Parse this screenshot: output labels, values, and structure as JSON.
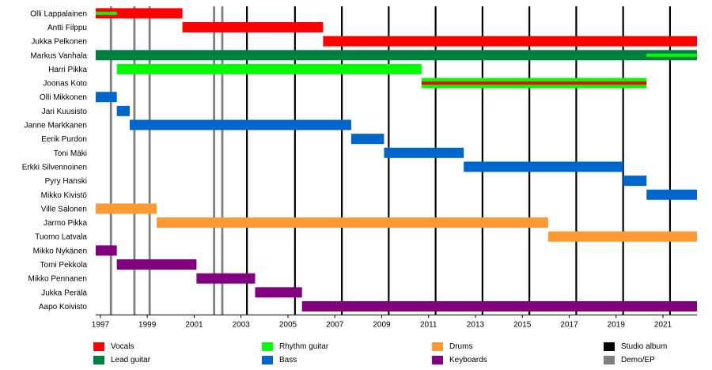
{
  "chart_data": {
    "type": "timeline",
    "title": "",
    "xlabel": "",
    "ylabel": "",
    "xlim": [
      1996.8,
      2022.45
    ],
    "x_ticks": [
      "1997",
      "1999",
      "2001",
      "2003",
      "2005",
      "2007",
      "2009",
      "2011",
      "2013",
      "2015",
      "2017",
      "2019",
      "2021"
    ],
    "x_tick_values": [
      1997,
      1999,
      2001,
      2003,
      2005,
      2007,
      2009,
      2011,
      2013,
      2015,
      2017,
      2019,
      2021
    ],
    "grid": false,
    "legend_position": "bottom",
    "roles": [
      {
        "key": "vocals",
        "label": "Vocals",
        "color": "#ff0000"
      },
      {
        "key": "lead",
        "label": "Lead guitar",
        "color": "#008040"
      },
      {
        "key": "rhythm",
        "label": "Rhythm guitar",
        "color": "#00ff00"
      },
      {
        "key": "bass",
        "label": "Bass",
        "color": "#0066cc"
      },
      {
        "key": "drums",
        "label": "Drums",
        "color": "#ff9933"
      },
      {
        "key": "keys",
        "label": "Keyboards",
        "color": "#800080"
      }
    ],
    "event_types": [
      {
        "key": "studio",
        "label": "Studio album",
        "color": "#000000"
      },
      {
        "key": "demo",
        "label": "Demo/EP",
        "color": "#808080"
      }
    ],
    "members": [
      {
        "name": "Olli Lappalainen",
        "periods": [
          {
            "role": "vocals",
            "start": 1996.8,
            "end": 2000.5
          },
          {
            "role": "rhythm",
            "start": 1996.8,
            "end": 1997.7,
            "thin": true
          }
        ]
      },
      {
        "name": "Antti Filppu",
        "periods": [
          {
            "role": "vocals",
            "start": 2000.5,
            "end": 2006.5
          }
        ]
      },
      {
        "name": "Jukka Pelkonen",
        "periods": [
          {
            "role": "vocals",
            "start": 2006.5,
            "end": 2022.45
          }
        ]
      },
      {
        "name": "Markus Vanhala",
        "periods": [
          {
            "role": "lead",
            "start": 1996.8,
            "end": 2022.45
          },
          {
            "role": "rhythm",
            "start": 2020.3,
            "end": 2022.45,
            "thin": true
          }
        ]
      },
      {
        "name": "Harri Pikka",
        "periods": [
          {
            "role": "rhythm",
            "start": 1997.7,
            "end": 2010.7
          }
        ]
      },
      {
        "name": "Joonas Koto",
        "periods": [
          {
            "role": "rhythm",
            "start": 2010.7,
            "end": 2020.3
          },
          {
            "role": "vocals",
            "start": 2010.7,
            "end": 2020.3,
            "thin": true
          }
        ]
      },
      {
        "name": "Olli Mikkonen",
        "periods": [
          {
            "role": "bass",
            "start": 1996.8,
            "end": 1997.7
          }
        ]
      },
      {
        "name": "Jari Kuusisto",
        "periods": [
          {
            "role": "bass",
            "start": 1997.7,
            "end": 1998.25
          }
        ]
      },
      {
        "name": "Janne Markkanen",
        "periods": [
          {
            "role": "bass",
            "start": 1998.25,
            "end": 2007.7
          }
        ]
      },
      {
        "name": "Eerik Purdon",
        "periods": [
          {
            "role": "bass",
            "start": 2007.7,
            "end": 2009.1
          }
        ]
      },
      {
        "name": "Toni Mäki",
        "periods": [
          {
            "role": "bass",
            "start": 2009.1,
            "end": 2012.5
          }
        ]
      },
      {
        "name": "Erkki Silvennoinen",
        "periods": [
          {
            "role": "bass",
            "start": 2012.5,
            "end": 2019.3
          }
        ]
      },
      {
        "name": "Pyry Hanski",
        "periods": [
          {
            "role": "bass",
            "start": 2019.3,
            "end": 2020.3
          }
        ]
      },
      {
        "name": "Mikko Kivistö",
        "periods": [
          {
            "role": "bass",
            "start": 2020.3,
            "end": 2022.45
          }
        ]
      },
      {
        "name": "Ville Salonen",
        "periods": [
          {
            "role": "drums",
            "start": 1996.8,
            "end": 1999.4
          }
        ]
      },
      {
        "name": "Jarmo Pikka",
        "periods": [
          {
            "role": "drums",
            "start": 1999.4,
            "end": 2016.1
          }
        ]
      },
      {
        "name": "Tuomo Latvala",
        "periods": [
          {
            "role": "drums",
            "start": 2016.1,
            "end": 2022.45
          }
        ]
      },
      {
        "name": "Mikko Nykänen",
        "periods": [
          {
            "role": "keys",
            "start": 1996.8,
            "end": 1997.7
          }
        ]
      },
      {
        "name": "Tomi Pekkola",
        "periods": [
          {
            "role": "keys",
            "start": 1997.7,
            "end": 2001.1
          }
        ]
      },
      {
        "name": "Mikko Pennanen",
        "periods": [
          {
            "role": "keys",
            "start": 2001.1,
            "end": 2003.6
          }
        ]
      },
      {
        "name": "Jukka Perälä",
        "periods": [
          {
            "role": "keys",
            "start": 2003.6,
            "end": 2005.6
          }
        ]
      },
      {
        "name": "Aapo Koivisto",
        "periods": [
          {
            "role": "keys",
            "start": 2005.6,
            "end": 2022.45
          }
        ]
      }
    ],
    "events": [
      {
        "type": "demo",
        "x": 1997.45
      },
      {
        "type": "demo",
        "x": 1998.45
      },
      {
        "type": "demo",
        "x": 1999.1
      },
      {
        "type": "demo",
        "x": 2001.85
      },
      {
        "type": "demo",
        "x": 2002.2
      },
      {
        "type": "studio",
        "x": 2003.25
      },
      {
        "type": "studio",
        "x": 2005.3
      },
      {
        "type": "studio",
        "x": 2007.3
      },
      {
        "type": "studio",
        "x": 2009.3
      },
      {
        "type": "studio",
        "x": 2011.3
      },
      {
        "type": "studio",
        "x": 2013.3
      },
      {
        "type": "studio",
        "x": 2015.3
      },
      {
        "type": "studio",
        "x": 2017.3
      },
      {
        "type": "studio",
        "x": 2019.3
      },
      {
        "type": "studio",
        "x": 2021.3
      }
    ]
  }
}
